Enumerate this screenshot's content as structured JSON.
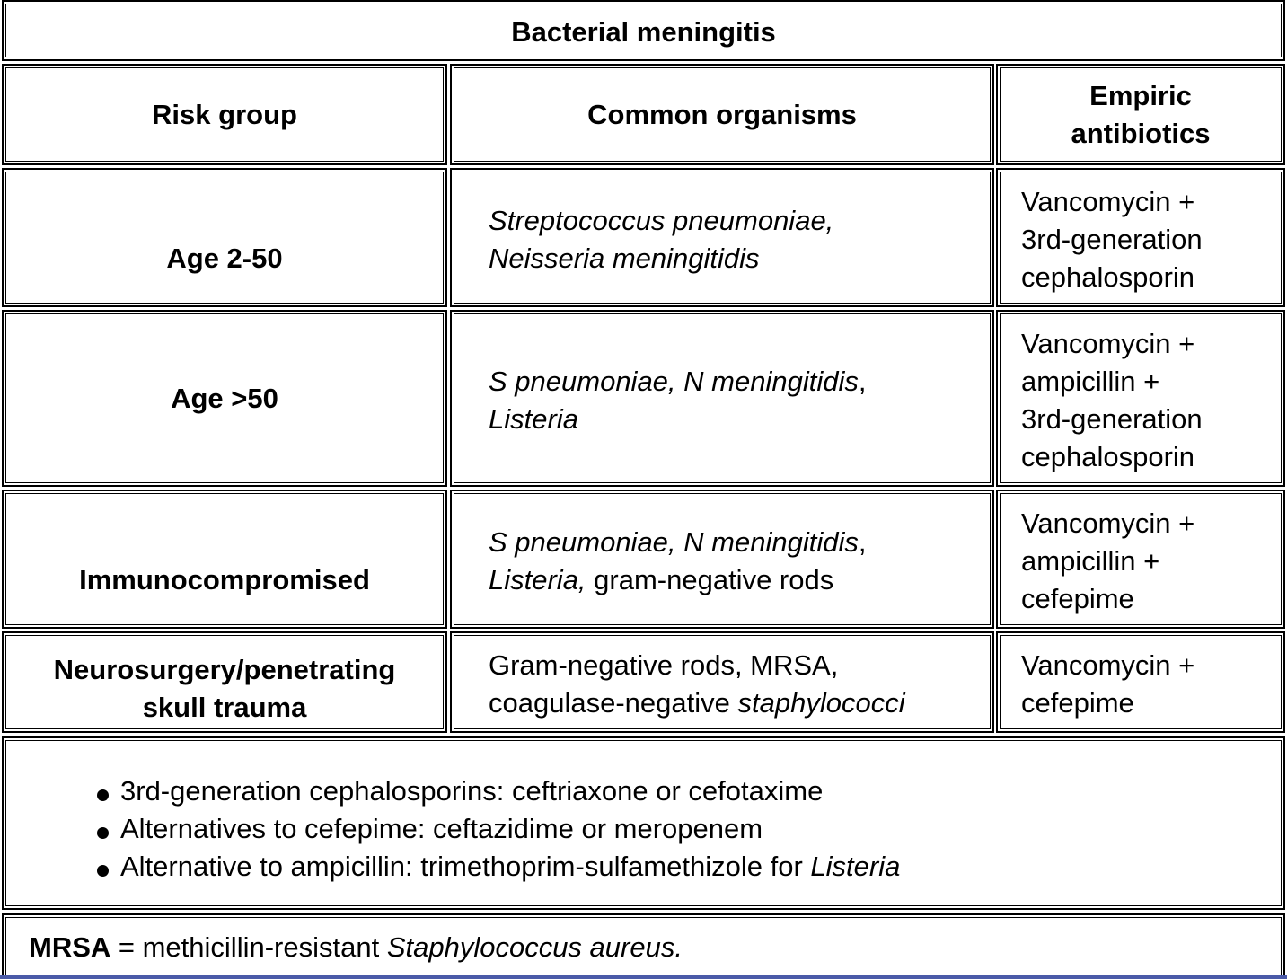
{
  "title": "Bacterial meningitis",
  "headers": {
    "risk": "Risk group",
    "organisms": "Common organisms",
    "antibiotics_line1": "Empiric",
    "antibiotics_line2": "antibiotics"
  },
  "rows": [
    {
      "risk": "Age 2-50",
      "org_line1": "Streptococcus pneumoniae,",
      "org_line2": "Neisseria meningitidis",
      "abx_line1": "Vancomycin +",
      "abx_line2": "3rd-generation",
      "abx_line3": "cephalosporin"
    },
    {
      "risk": "Age >50",
      "org_line1_it": "S pneumoniae, N meningitidis",
      "org_line1_tail": ",",
      "org_line2_it": "Listeria",
      "abx_line1": "Vancomycin +",
      "abx_line2": "ampicillin +",
      "abx_line3": "3rd-generation",
      "abx_line4": "cephalosporin"
    },
    {
      "risk": "Immunocompromised",
      "org_line1_it": "S pneumoniae, N meningitidis",
      "org_line1_tail": ",",
      "org_line2_it": "Listeria,",
      "org_line2_tail": " gram-negative rods",
      "abx_line1": "Vancomycin +",
      "abx_line2": "ampicillin +",
      "abx_line3": "cefepime"
    },
    {
      "risk_line1": "Neurosurgery/penetrating",
      "risk_line2": "skull trauma",
      "org_line1": "Gram-negative rods, MRSA,",
      "org_line2_plain": "coagulase-negative ",
      "org_line2_it": "staphylococci",
      "abx_line1": "Vancomycin +",
      "abx_line2": "cefepime"
    }
  ],
  "notes": {
    "item1": "3rd-generation cephalosporins: ceftriaxone or cefotaxime",
    "item2": "Alternatives to cefepime: ceftazidime or meropenem",
    "item3_plain": "Alternative to ampicillin: trimethoprim-sulfamethizole for ",
    "item3_it": "Listeria"
  },
  "footnote": {
    "abbr": "MRSA",
    "eq": " = methicillin-resistant ",
    "it": "Staphylococcus aureus."
  },
  "colors": {
    "border": "#000000",
    "bottom_line": "#4a5aa8"
  }
}
